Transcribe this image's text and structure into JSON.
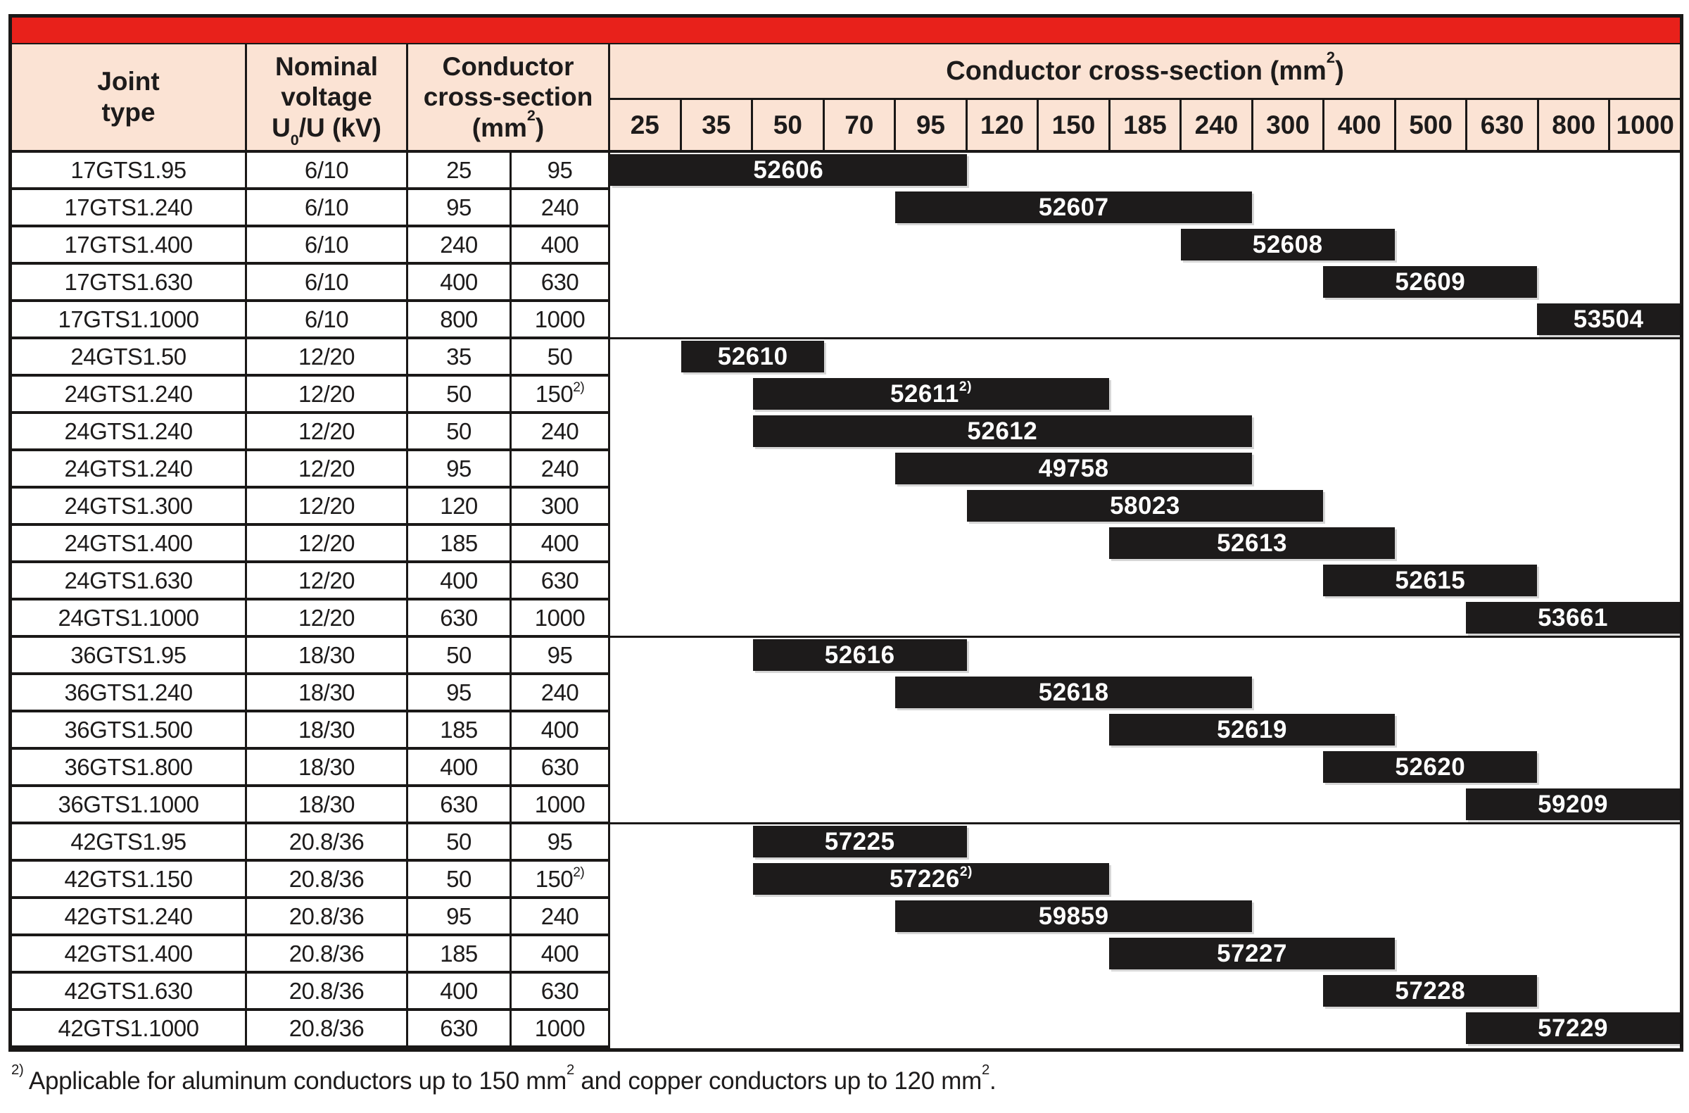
{
  "colors": {
    "accent_red": "#e8211b",
    "header_background": "#fbe3d4",
    "bar_black": "#1d1b1b",
    "border_black": "#1a1817"
  },
  "header": {
    "joint": "Joint\ntype",
    "nominal": "Nominal\nvoltage",
    "u_prefix": "U",
    "u_sub": "0",
    "u_suffix": "/U (kV)",
    "cs_lines": "Conductor\ncross-section",
    "cs_unit_prefix": "(mm",
    "cs_sup": "2",
    "cs_unit_suffix": ")",
    "chart_prefix": "Conductor cross-section (mm",
    "chart_sup": "2",
    "chart_suffix": ")"
  },
  "columns": [
    "25",
    "35",
    "50",
    "70",
    "95",
    "120",
    "150",
    "185",
    "240",
    "300",
    "400",
    "500",
    "630",
    "800",
    "1000"
  ],
  "rows": [
    {
      "joint": "17GTS1.95",
      "voltage": "6/10",
      "cs_low": "25",
      "cs_high": "95",
      "cs_high_sup": "",
      "bar": "52606",
      "bar_sup": "",
      "from": 0,
      "to": 4,
      "group": "17GTS"
    },
    {
      "joint": "17GTS1.240",
      "voltage": "6/10",
      "cs_low": "95",
      "cs_high": "240",
      "cs_high_sup": "",
      "bar": "52607",
      "bar_sup": "",
      "from": 4,
      "to": 8,
      "group": "17GTS"
    },
    {
      "joint": "17GTS1.400",
      "voltage": "6/10",
      "cs_low": "240",
      "cs_high": "400",
      "cs_high_sup": "",
      "bar": "52608",
      "bar_sup": "",
      "from": 8,
      "to": 10,
      "group": "17GTS"
    },
    {
      "joint": "17GTS1.630",
      "voltage": "6/10",
      "cs_low": "400",
      "cs_high": "630",
      "cs_high_sup": "",
      "bar": "52609",
      "bar_sup": "",
      "from": 10,
      "to": 12,
      "group": "17GTS"
    },
    {
      "joint": "17GTS1.1000",
      "voltage": "6/10",
      "cs_low": "800",
      "cs_high": "1000",
      "cs_high_sup": "",
      "bar": "53504",
      "bar_sup": "",
      "from": 13,
      "to": 14,
      "group": "17GTS"
    },
    {
      "joint": "24GTS1.50",
      "voltage": "12/20",
      "cs_low": "35",
      "cs_high": "50",
      "cs_high_sup": "",
      "bar": "52610",
      "bar_sup": "",
      "from": 1,
      "to": 2,
      "group": "24GTS"
    },
    {
      "joint": "24GTS1.240",
      "voltage": "12/20",
      "cs_low": "50",
      "cs_high": "150",
      "cs_high_sup": "2)",
      "bar": "52611",
      "bar_sup": "2)",
      "from": 2,
      "to": 6,
      "group": "24GTS"
    },
    {
      "joint": "24GTS1.240",
      "voltage": "12/20",
      "cs_low": "50",
      "cs_high": "240",
      "cs_high_sup": "",
      "bar": "52612",
      "bar_sup": "",
      "from": 2,
      "to": 8,
      "group": "24GTS"
    },
    {
      "joint": "24GTS1.240",
      "voltage": "12/20",
      "cs_low": "95",
      "cs_high": "240",
      "cs_high_sup": "",
      "bar": "49758",
      "bar_sup": "",
      "from": 4,
      "to": 8,
      "group": "24GTS"
    },
    {
      "joint": "24GTS1.300",
      "voltage": "12/20",
      "cs_low": "120",
      "cs_high": "300",
      "cs_high_sup": "",
      "bar": "58023",
      "bar_sup": "",
      "from": 5,
      "to": 9,
      "group": "24GTS"
    },
    {
      "joint": "24GTS1.400",
      "voltage": "12/20",
      "cs_low": "185",
      "cs_high": "400",
      "cs_high_sup": "",
      "bar": "52613",
      "bar_sup": "",
      "from": 7,
      "to": 10,
      "group": "24GTS"
    },
    {
      "joint": "24GTS1.630",
      "voltage": "12/20",
      "cs_low": "400",
      "cs_high": "630",
      "cs_high_sup": "",
      "bar": "52615",
      "bar_sup": "",
      "from": 10,
      "to": 12,
      "group": "24GTS"
    },
    {
      "joint": "24GTS1.1000",
      "voltage": "12/20",
      "cs_low": "630",
      "cs_high": "1000",
      "cs_high_sup": "",
      "bar": "53661",
      "bar_sup": "",
      "from": 12,
      "to": 14,
      "group": "24GTS"
    },
    {
      "joint": "36GTS1.95",
      "voltage": "18/30",
      "cs_low": "50",
      "cs_high": "95",
      "cs_high_sup": "",
      "bar": "52616",
      "bar_sup": "",
      "from": 2,
      "to": 4,
      "group": "36GTS"
    },
    {
      "joint": "36GTS1.240",
      "voltage": "18/30",
      "cs_low": "95",
      "cs_high": "240",
      "cs_high_sup": "",
      "bar": "52618",
      "bar_sup": "",
      "from": 4,
      "to": 8,
      "group": "36GTS"
    },
    {
      "joint": "36GTS1.500",
      "voltage": "18/30",
      "cs_low": "185",
      "cs_high": "400",
      "cs_high_sup": "",
      "bar": "52619",
      "bar_sup": "",
      "from": 7,
      "to": 10,
      "group": "36GTS"
    },
    {
      "joint": "36GTS1.800",
      "voltage": "18/30",
      "cs_low": "400",
      "cs_high": "630",
      "cs_high_sup": "",
      "bar": "52620",
      "bar_sup": "",
      "from": 10,
      "to": 12,
      "group": "36GTS"
    },
    {
      "joint": "36GTS1.1000",
      "voltage": "18/30",
      "cs_low": "630",
      "cs_high": "1000",
      "cs_high_sup": "",
      "bar": "59209",
      "bar_sup": "",
      "from": 12,
      "to": 14,
      "group": "36GTS"
    },
    {
      "joint": "42GTS1.95",
      "voltage": "20.8/36",
      "cs_low": "50",
      "cs_high": "95",
      "cs_high_sup": "",
      "bar": "57225",
      "bar_sup": "",
      "from": 2,
      "to": 4,
      "group": "42GTS"
    },
    {
      "joint": "42GTS1.150",
      "voltage": "20.8/36",
      "cs_low": "50",
      "cs_high": "150",
      "cs_high_sup": "2)",
      "bar": "57226",
      "bar_sup": "2)",
      "from": 2,
      "to": 6,
      "group": "42GTS"
    },
    {
      "joint": "42GTS1.240",
      "voltage": "20.8/36",
      "cs_low": "95",
      "cs_high": "240",
      "cs_high_sup": "",
      "bar": "59859",
      "bar_sup": "",
      "from": 4,
      "to": 8,
      "group": "42GTS"
    },
    {
      "joint": "42GTS1.400",
      "voltage": "20.8/36",
      "cs_low": "185",
      "cs_high": "400",
      "cs_high_sup": "",
      "bar": "57227",
      "bar_sup": "",
      "from": 7,
      "to": 10,
      "group": "42GTS"
    },
    {
      "joint": "42GTS1.630",
      "voltage": "20.8/36",
      "cs_low": "400",
      "cs_high": "630",
      "cs_high_sup": "",
      "bar": "57228",
      "bar_sup": "",
      "from": 10,
      "to": 12,
      "group": "42GTS"
    },
    {
      "joint": "42GTS1.1000",
      "voltage": "20.8/36",
      "cs_low": "630",
      "cs_high": "1000",
      "cs_high_sup": "",
      "bar": "57229",
      "bar_sup": "",
      "from": 12,
      "to": 14,
      "group": "42GTS"
    }
  ],
  "footnote": {
    "sup": "2)",
    "p1": " Applicable for aluminum conductors up to 150 mm",
    "s1": "2",
    "p2": " and copper conductors up to 120 mm",
    "s2": "2",
    "p3": "."
  }
}
